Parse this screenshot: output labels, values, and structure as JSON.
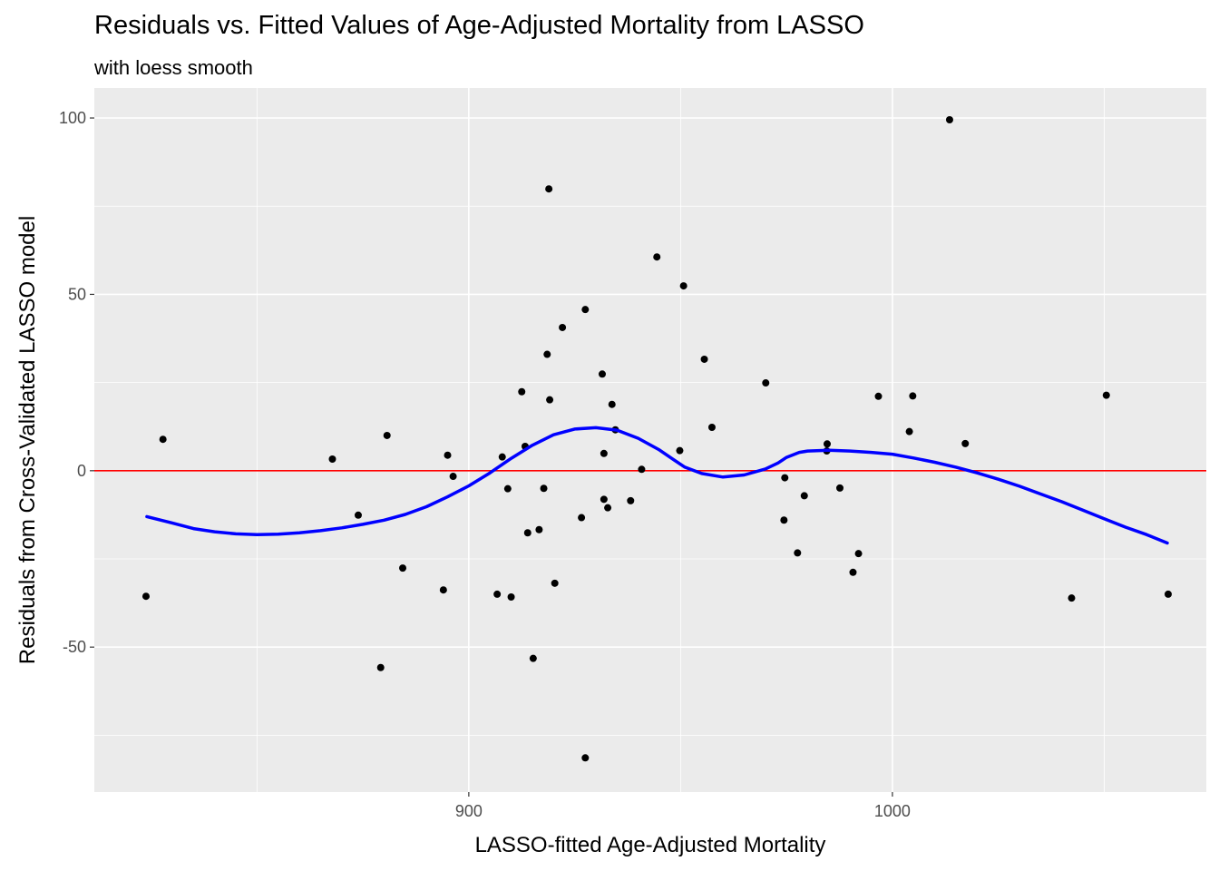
{
  "chart_data": {
    "type": "scatter",
    "title": "Residuals vs. Fitted Values of Age-Adjusted Mortality from LASSO",
    "subtitle": "with loess smooth",
    "xlabel": "LASSO-fitted Age-Adjusted Mortality",
    "ylabel": "Residuals from Cross-Validated LASSO model",
    "xlim": [
      811.6,
      1074.1
    ],
    "ylim": [
      -91.1,
      108.5
    ],
    "x_ticks": [
      900,
      1000
    ],
    "x_minor_ticks": [
      850,
      950,
      1050
    ],
    "y_ticks": [
      -50,
      0,
      50,
      100
    ],
    "y_minor_ticks": [
      -75,
      -25,
      25,
      75
    ],
    "grid": true,
    "background": "#ebebeb",
    "grid_color": "#ffffff",
    "point_color": "#000000",
    "smooth_color": "#0000ff",
    "reference_line": {
      "y": 0,
      "color": "#ff0000"
    },
    "x": [
      823.8,
      827.8,
      867.8,
      873.9,
      879.2,
      880.7,
      884.4,
      894.0,
      895.0,
      896.3,
      906.7,
      907.9,
      909.2,
      910.0,
      912.5,
      913.3,
      913.9,
      915.2,
      916.6,
      917.7,
      918.5,
      918.9,
      919.1,
      920.3,
      922.1,
      926.6,
      927.5,
      927.5,
      931.5,
      931.9,
      931.9,
      932.8,
      933.8,
      934.6,
      938.2,
      940.8,
      944.4,
      949.8,
      950.7,
      955.6,
      957.4,
      970.1,
      974.4,
      974.6,
      977.6,
      979.2,
      984.5,
      984.6,
      987.6,
      990.7,
      992.0,
      996.7,
      1004.0,
      1004.8,
      1013.5,
      1017.2,
      1042.3,
      1050.5,
      1065.1
    ],
    "y": [
      -35.6,
      8.9,
      3.3,
      -12.6,
      -55.8,
      10.0,
      -27.6,
      -33.8,
      4.4,
      -1.6,
      -35.0,
      3.9,
      -5.1,
      -35.8,
      22.4,
      6.9,
      -17.6,
      -53.2,
      -16.7,
      -5.0,
      33.0,
      79.9,
      20.1,
      -31.9,
      40.6,
      -13.3,
      45.7,
      -81.4,
      27.4,
      4.9,
      -8.1,
      -10.5,
      18.8,
      11.6,
      -8.5,
      0.4,
      60.6,
      5.7,
      52.4,
      31.6,
      12.3,
      24.9,
      -14.0,
      -2.0,
      -23.3,
      -7.1,
      5.6,
      7.6,
      -4.9,
      -28.8,
      -23.5,
      21.1,
      11.1,
      21.2,
      99.5,
      7.7,
      -36.1,
      21.4,
      -35.0
    ],
    "smooth": {
      "x": [
        824.0,
        830,
        835,
        840,
        845,
        850,
        855,
        860,
        865,
        870,
        875,
        880,
        885,
        890,
        895,
        900,
        905,
        910,
        915,
        920,
        925,
        930,
        935,
        940,
        945,
        948,
        951,
        955,
        960,
        965,
        970,
        973,
        975,
        978,
        980,
        985,
        990,
        995,
        1000,
        1005,
        1010,
        1015,
        1020,
        1025,
        1030,
        1035,
        1040,
        1045,
        1050,
        1055,
        1060,
        1064.9
      ],
      "y": [
        -13.0,
        -14.8,
        -16.4,
        -17.3,
        -17.9,
        -18.1,
        -18.0,
        -17.6,
        -17.0,
        -16.2,
        -15.2,
        -14.0,
        -12.4,
        -10.2,
        -7.4,
        -4.3,
        -0.6,
        3.5,
        7.2,
        10.2,
        11.8,
        12.2,
        11.5,
        9.2,
        5.9,
        3.4,
        1.0,
        -0.8,
        -1.8,
        -1.2,
        0.5,
        2.2,
        3.8,
        5.2,
        5.6,
        5.8,
        5.6,
        5.2,
        4.7,
        3.6,
        2.4,
        1.0,
        -0.6,
        -2.4,
        -4.4,
        -6.6,
        -8.8,
        -11.2,
        -13.6,
        -16.0,
        -18.1,
        -20.5
      ]
    }
  }
}
